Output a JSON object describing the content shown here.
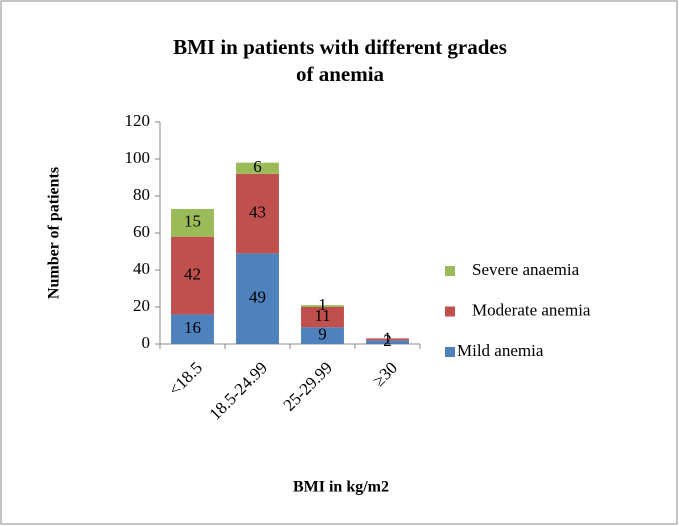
{
  "chart_data": {
    "type": "stacked_bar",
    "title": "BMI in patients with different grades of anemia",
    "x_label": "BMI in kg/m2",
    "y_label": "Number of patients",
    "categories": [
      "<18.5",
      "18.5-24.99",
      "25-29.99",
      "≥30"
    ],
    "series": [
      {
        "name": "Mild anemia",
        "color": "#4f81bd",
        "values": [
          16,
          49,
          9,
          2
        ]
      },
      {
        "name": "Moderate anemia",
        "color": "#c0504d",
        "values": [
          42,
          43,
          11,
          1
        ]
      },
      {
        "name": "Severe anaemia",
        "color": "#9bbb59",
        "values": [
          15,
          6,
          1,
          null
        ]
      }
    ],
    "ylim": [
      0,
      120
    ],
    "yticks": [
      0,
      20,
      40,
      60,
      80,
      100,
      120
    ],
    "legend": "right"
  }
}
